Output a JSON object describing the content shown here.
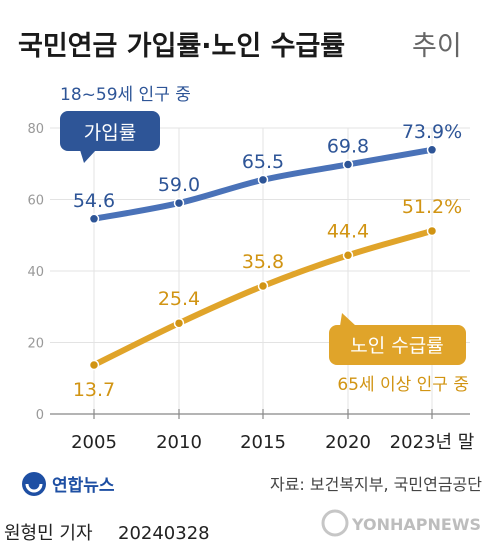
{
  "chart_data": {
    "type": "line",
    "title_bold": "국민연금 가입률·노인 수급률",
    "title_light": "추이",
    "categories": [
      "2005",
      "2010",
      "2015",
      "2020",
      "2023년 말"
    ],
    "ylim": [
      0,
      80
    ],
    "yticks": [
      "0",
      "20",
      "40",
      "60",
      "80"
    ],
    "series": [
      {
        "name": "가입률",
        "note": "18~59세 인구 중",
        "values": [
          54.6,
          59.0,
          65.5,
          69.8,
          73.9
        ],
        "labels": [
          "54.6",
          "59.0",
          "65.5",
          "69.8",
          "73.9%"
        ],
        "color": "#4a72b8",
        "label_color": "#2e5597"
      },
      {
        "name": "노인 수급률",
        "note": "65세 이상 인구 중",
        "values": [
          13.7,
          25.4,
          35.8,
          44.4,
          51.2
        ],
        "labels": [
          "13.7",
          "25.4",
          "35.8",
          "44.4",
          "51.2%"
        ],
        "color": "#e0a42a",
        "label_color": "#d19413"
      }
    ],
    "grid": true
  },
  "footer": {
    "logo_text": "연합뉴스",
    "source": "자료: 보건복지부, 국민연금공단",
    "credit": "원형민 기자",
    "date": "20240328",
    "watermark": "YONHAPNEWS"
  },
  "colors": {
    "title": "#1a1a1a",
    "title_light": "#666666",
    "axis_text": "#222222",
    "tick_text": "#999999",
    "grid": "#e3e3e3"
  }
}
